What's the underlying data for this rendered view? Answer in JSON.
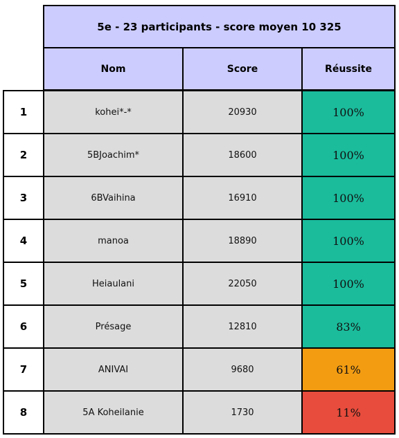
{
  "table": {
    "title": "5e - 23 participants - score moyen 10 325",
    "headers": {
      "name": "Nom",
      "score": "Score",
      "success": "Réussite"
    },
    "rows": [
      {
        "rank": "1",
        "name": "kohei*-*",
        "score": "20930",
        "success": "100%",
        "success_color": "#1abc9c"
      },
      {
        "rank": "2",
        "name": "5BJoachim*",
        "score": "18600",
        "success": "100%",
        "success_color": "#1abc9c"
      },
      {
        "rank": "3",
        "name": "6BVaihina",
        "score": "16910",
        "success": "100%",
        "success_color": "#1abc9c"
      },
      {
        "rank": "4",
        "name": "manoa",
        "score": "18890",
        "success": "100%",
        "success_color": "#1abc9c"
      },
      {
        "rank": "5",
        "name": "Heiaulani",
        "score": "22050",
        "success": "100%",
        "success_color": "#1abc9c"
      },
      {
        "rank": "6",
        "name": "Présage",
        "score": "12810",
        "success": "83%",
        "success_color": "#1abc9c"
      },
      {
        "rank": "7",
        "name": "ANIVAI",
        "score": "9680",
        "success": "61%",
        "success_color": "#f39c12"
      },
      {
        "rank": "8",
        "name": "5A Koheilanie",
        "score": "1730",
        "success": "11%",
        "success_color": "#e74c3c"
      }
    ]
  }
}
